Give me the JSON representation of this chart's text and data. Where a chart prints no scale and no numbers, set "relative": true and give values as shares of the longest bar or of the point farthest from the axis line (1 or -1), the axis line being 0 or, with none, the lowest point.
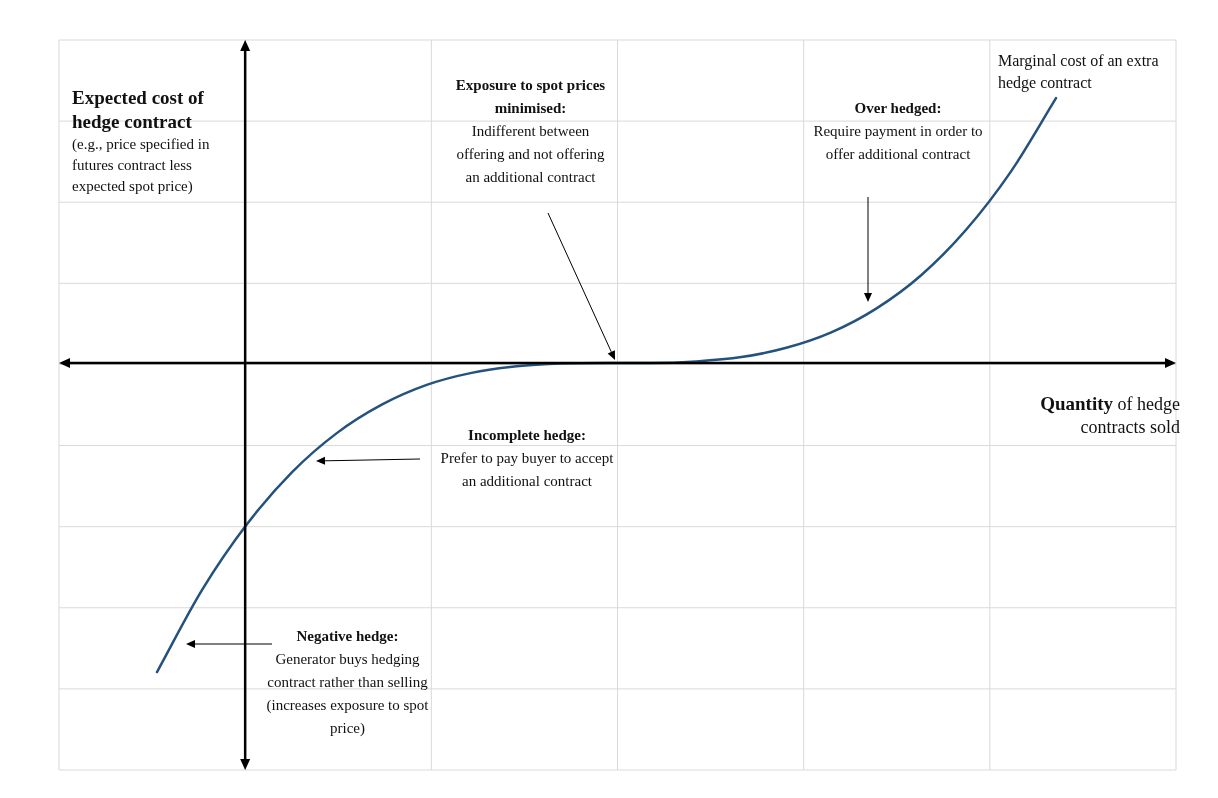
{
  "chart_data": {
    "type": "line",
    "relative": true,
    "grid": true,
    "legend": false,
    "marker": "none",
    "line_style": "solid",
    "xlabel": "Quantity of hedge contracts sold",
    "ylabel": "Expected cost of hedge contract (e.g., price specified in futures contract less expected spot price)",
    "categories": [
      null,
      null,
      null,
      null,
      null,
      null,
      null,
      null,
      null,
      null,
      null,
      null,
      null,
      null,
      null,
      null,
      null,
      null,
      null,
      null,
      null
    ],
    "series": [
      {
        "name": "Marginal cost of an extra hedge contract",
        "color": "#24527d",
        "values": [
          -1,
          -0.735,
          -0.522,
          -0.354,
          -0.227,
          -0.135,
          -0.071,
          -0.032,
          -0.011,
          -0.002,
          0,
          0,
          0.005,
          0.019,
          0.049,
          0.099,
          0.176,
          0.284,
          0.431,
          0.62,
          0.857
        ]
      }
    ],
    "annotations": [
      "Exposure to spot prices minimised: Indifferent between offering and not offering an additional contract",
      "Over hedged: Require payment in order to offer additional contract",
      "Incomplete hedge: Prefer to pay buyer to accept an additional contract",
      "Negative hedge: Generator buys hedging contract rather than selling (increases exposure to spot price)"
    ]
  }
}
